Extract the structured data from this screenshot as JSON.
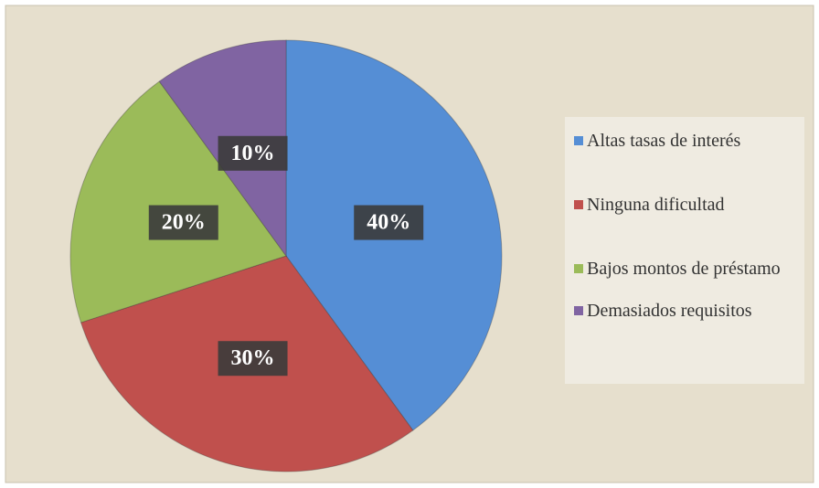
{
  "chart_data": {
    "type": "pie",
    "categories": [
      "Altas tasas de interés",
      "Ninguna dificultad",
      "Bajos montos de préstamo",
      "Demasiados requisitos"
    ],
    "values": [
      40,
      30,
      20,
      10
    ],
    "value_labels": [
      "40%",
      "30%",
      "20%",
      "10%"
    ],
    "colors": [
      "#558ed5",
      "#c0504d",
      "#9bbb59",
      "#8064a2"
    ],
    "legend": "right"
  }
}
